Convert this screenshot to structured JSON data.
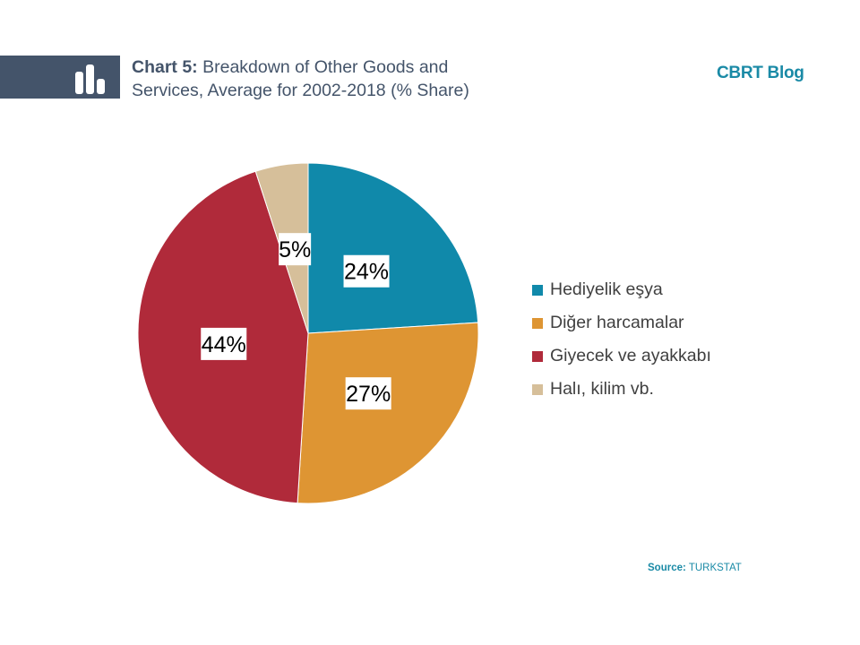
{
  "header": {
    "chart_number": "Chart 5:",
    "title_text": " Breakdown of Other Goods and Services, Average for 2002-2018 (% Share)",
    "brand": "CBRT Blog",
    "icon": "bar-chart-icon"
  },
  "source": {
    "label": "Source:",
    "value": " TURKSTAT"
  },
  "colors": {
    "header_bar": "#44546a",
    "brand": "#1a8aa6"
  },
  "chart_data": {
    "type": "pie",
    "title": "Chart 5: Breakdown of Other Goods and Services, Average for 2002-2018 (% Share)",
    "legend_position": "right",
    "slices": [
      {
        "name": "Hediyelik eşya",
        "value": 24,
        "label": "24%",
        "color": "#1089aa"
      },
      {
        "name": "Diğer harcamalar",
        "value": 27,
        "label": "27%",
        "color": "#de9533"
      },
      {
        "name": "Giyecek ve ayakkabı",
        "value": 44,
        "label": "44%",
        "color": "#b02a3a"
      },
      {
        "name": "Halı, kilim vb.",
        "value": 5,
        "label": "5%",
        "color": "#d6bf9a"
      }
    ]
  }
}
